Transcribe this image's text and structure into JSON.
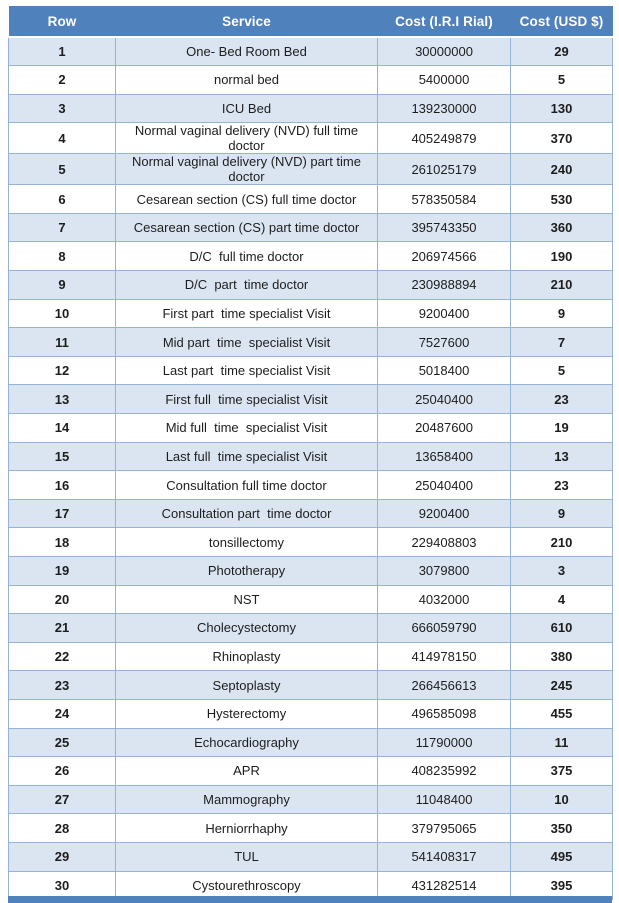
{
  "colors": {
    "header_bg": "#4f81bd",
    "header_text": "#ffffff",
    "alt_row_bg": "#dbe5f1",
    "grid_border": "#95b3d7",
    "body_text": "#1d1d1d",
    "bottom_bar": "#4f81bd"
  },
  "table": {
    "headers": [
      "Row",
      "Service",
      "Cost (I.R.I Rial)",
      "Cost (USD $)"
    ],
    "rows": [
      {
        "row": "1",
        "service": "One- Bed Room Bed",
        "rial": "30000000",
        "usd": "29"
      },
      {
        "row": "2",
        "service": "normal bed",
        "rial": "5400000",
        "usd": "5"
      },
      {
        "row": "3",
        "service": "ICU Bed",
        "rial": "139230000",
        "usd": "130"
      },
      {
        "row": "4",
        "service": "Normal vaginal delivery (NVD) full time doctor",
        "rial": "405249879",
        "usd": "370"
      },
      {
        "row": "5",
        "service": "Normal vaginal delivery (NVD) part time doctor",
        "rial": "261025179",
        "usd": "240"
      },
      {
        "row": "6",
        "service": "Cesarean section (CS) full time doctor",
        "rial": "578350584",
        "usd": "530"
      },
      {
        "row": "7",
        "service": "Cesarean section (CS) part time doctor",
        "rial": "395743350",
        "usd": "360"
      },
      {
        "row": "8",
        "service": "D/C  full time doctor",
        "rial": "206974566",
        "usd": "190"
      },
      {
        "row": "9",
        "service": "D/C  part  time doctor",
        "rial": "230988894",
        "usd": "210"
      },
      {
        "row": "10",
        "service": "First part  time specialist Visit",
        "rial": "9200400",
        "usd": "9"
      },
      {
        "row": "11",
        "service": "Mid part  time  specialist Visit",
        "rial": "7527600",
        "usd": "7"
      },
      {
        "row": "12",
        "service": "Last part  time specialist Visit",
        "rial": "5018400",
        "usd": "5"
      },
      {
        "row": "13",
        "service": "First full  time specialist Visit",
        "rial": "25040400",
        "usd": "23"
      },
      {
        "row": "14",
        "service": "Mid full  time  specialist Visit",
        "rial": "20487600",
        "usd": "19"
      },
      {
        "row": "15",
        "service": "Last full  time specialist Visit",
        "rial": "13658400",
        "usd": "13"
      },
      {
        "row": "16",
        "service": "Consultation full time doctor",
        "rial": "25040400",
        "usd": "23"
      },
      {
        "row": "17",
        "service": "Consultation part  time doctor",
        "rial": "9200400",
        "usd": "9"
      },
      {
        "row": "18",
        "service": "tonsillectomy",
        "rial": "229408803",
        "usd": "210"
      },
      {
        "row": "19",
        "service": "Phototherapy",
        "rial": "3079800",
        "usd": "3"
      },
      {
        "row": "20",
        "service": "NST",
        "rial": "4032000",
        "usd": "4"
      },
      {
        "row": "21",
        "service": "Cholecystectomy",
        "rial": "666059790",
        "usd": "610"
      },
      {
        "row": "22",
        "service": "Rhinoplasty",
        "rial": "414978150",
        "usd": "380"
      },
      {
        "row": "23",
        "service": "Septoplasty",
        "rial": "266456613",
        "usd": "245"
      },
      {
        "row": "24",
        "service": "Hysterectomy",
        "rial": "496585098",
        "usd": "455"
      },
      {
        "row": "25",
        "service": "Echocardiography",
        "rial": "11790000",
        "usd": "11"
      },
      {
        "row": "26",
        "service": "APR",
        "rial": "408235992",
        "usd": "375"
      },
      {
        "row": "27",
        "service": "Mammography",
        "rial": "11048400",
        "usd": "10"
      },
      {
        "row": "28",
        "service": "Herniorrhaphy",
        "rial": "379795065",
        "usd": "350"
      },
      {
        "row": "29",
        "service": "TUL",
        "rial": "541408317",
        "usd": "495"
      },
      {
        "row": "30",
        "service": "Cystourethroscopy",
        "rial": "431282514",
        "usd": "395"
      }
    ]
  }
}
